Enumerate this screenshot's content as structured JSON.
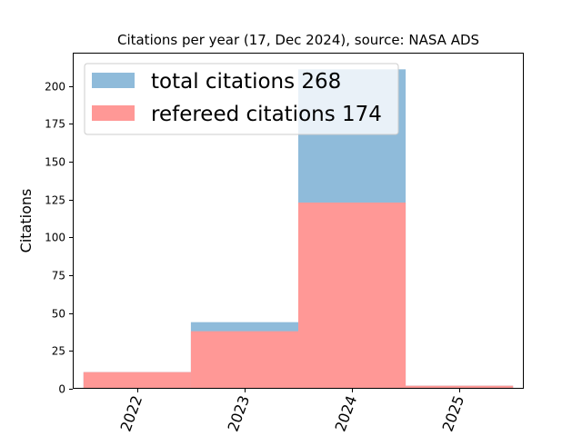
{
  "chart_data": {
    "type": "bar",
    "title": "Citations per year (17, Dec 2024), source: NASA ADS",
    "xlabel": "",
    "ylabel": "Citations",
    "categories": [
      "2022",
      "2023",
      "2024",
      "2025"
    ],
    "ylim": [
      0,
      222
    ],
    "yticks": [
      0,
      25,
      50,
      75,
      100,
      125,
      150,
      175,
      200
    ],
    "grid": false,
    "legend_position": "top-left",
    "series": [
      {
        "name": "total citations 268",
        "values": [
          11,
          44,
          211,
          2
        ],
        "color": "#8fbbda"
      },
      {
        "name": "refereed citations 174",
        "values": [
          11,
          38,
          123,
          2
        ],
        "color": "#ff9896"
      }
    ]
  }
}
